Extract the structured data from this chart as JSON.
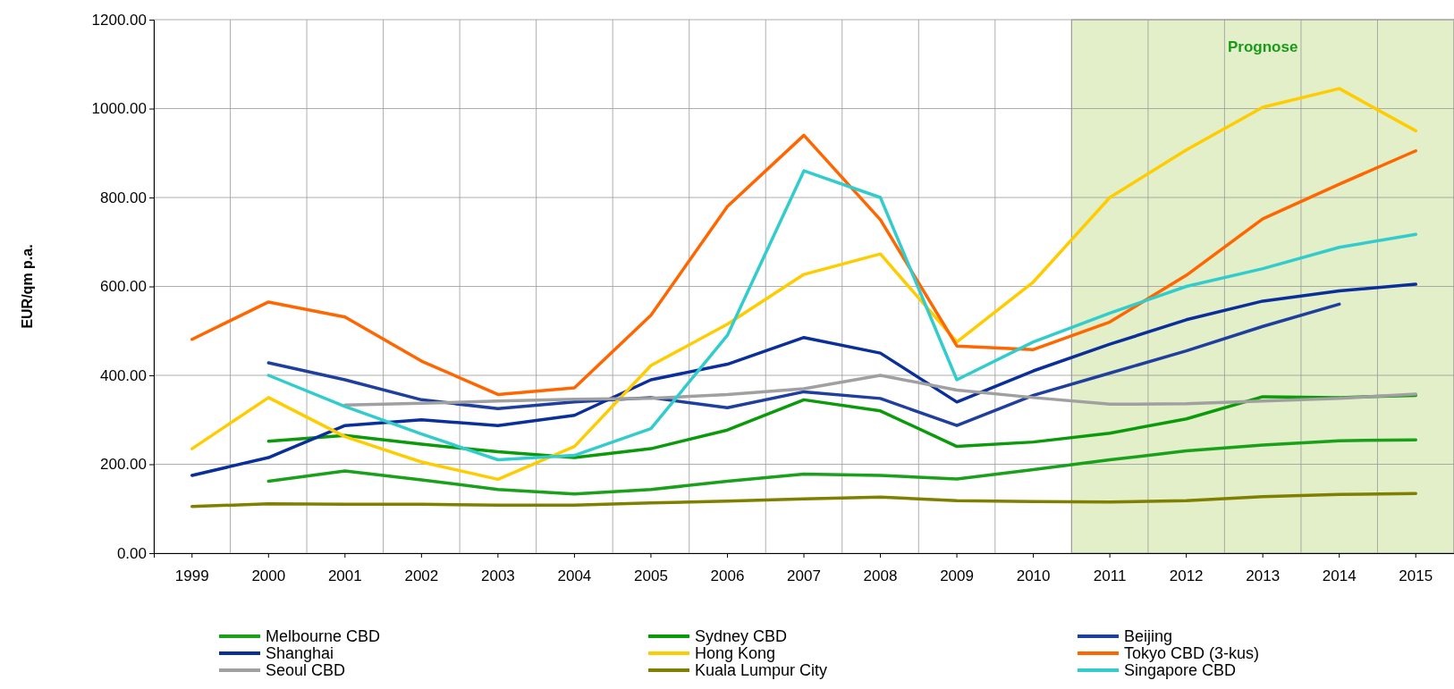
{
  "chart_data": {
    "type": "line",
    "ylabel": "EUR/qm p.a.",
    "categories": [
      "1999",
      "2000",
      "2001",
      "2002",
      "2003",
      "2004",
      "2005",
      "2006",
      "2007",
      "2008",
      "2009",
      "2010",
      "2011",
      "2012",
      "2013",
      "2014",
      "2015"
    ],
    "ylim": [
      0,
      1200
    ],
    "yticks": [
      {
        "value": 0,
        "label": "0.00"
      },
      {
        "value": 200,
        "label": "200.00"
      },
      {
        "value": 400,
        "label": "400.00"
      },
      {
        "value": 600,
        "label": "600.00"
      },
      {
        "value": 800,
        "label": "800.00"
      },
      {
        "value": 1000,
        "label": "1000.00"
      },
      {
        "value": 1200,
        "label": "1200.00"
      }
    ],
    "grid": true,
    "legend": "bottom",
    "marker": "none",
    "line_style": "solid",
    "bands": [
      {
        "axis": "x",
        "from": "2011",
        "to": "2015",
        "label": "Prognose",
        "color": "#e2efc9"
      }
    ],
    "series": [
      {
        "name": "Melbourne CBD",
        "color": "#1aa01a",
        "values": [
          null,
          162,
          185,
          165,
          143,
          133,
          143,
          162,
          178,
          175,
          167,
          188,
          210,
          230,
          243,
          253,
          255
        ]
      },
      {
        "name": "Sydney CBD",
        "color": "#0a9a0a",
        "values": [
          null,
          252,
          265,
          245,
          228,
          215,
          235,
          277,
          345,
          320,
          240,
          250,
          270,
          302,
          352,
          350,
          355
        ]
      },
      {
        "name": "Beijing",
        "color": "#1f3f9f",
        "values": [
          null,
          428,
          390,
          345,
          325,
          340,
          350,
          327,
          363,
          348,
          287,
          355,
          405,
          455,
          510,
          560,
          null
        ]
      },
      {
        "name": "Shanghai",
        "color": "#0a2f9a",
        "values": [
          175,
          215,
          287,
          300,
          287,
          310,
          390,
          425,
          485,
          450,
          340,
          410,
          470,
          525,
          567,
          590,
          605
        ]
      },
      {
        "name": "Hong Kong",
        "color": "#ffcc00",
        "values": [
          235,
          350,
          262,
          205,
          166,
          240,
          422,
          515,
          627,
          673,
          475,
          610,
          800,
          907,
          1003,
          1045,
          950
        ]
      },
      {
        "name": "Tokyo CBD (3-kus)",
        "color": "#ff6600",
        "values": [
          481,
          565,
          531,
          432,
          357,
          372,
          535,
          780,
          940,
          750,
          466,
          458,
          520,
          625,
          752,
          830,
          905
        ]
      },
      {
        "name": "Seoul CBD",
        "color": "#a0a0a0",
        "values": [
          null,
          null,
          333,
          337,
          342,
          346,
          348,
          357,
          370,
          400,
          367,
          350,
          335,
          336,
          342,
          348,
          358
        ]
      },
      {
        "name": "Kuala Lumpur City",
        "color": "#808000",
        "values": [
          105,
          111,
          110,
          110,
          108,
          108,
          113,
          117,
          122,
          126,
          118,
          116,
          115,
          118,
          127,
          132,
          134
        ]
      },
      {
        "name": "Singapore CBD",
        "color": "#33cccc",
        "values": [
          null,
          400,
          330,
          268,
          210,
          220,
          280,
          490,
          860,
          800,
          390,
          475,
          540,
          600,
          640,
          688,
          717
        ]
      }
    ]
  }
}
